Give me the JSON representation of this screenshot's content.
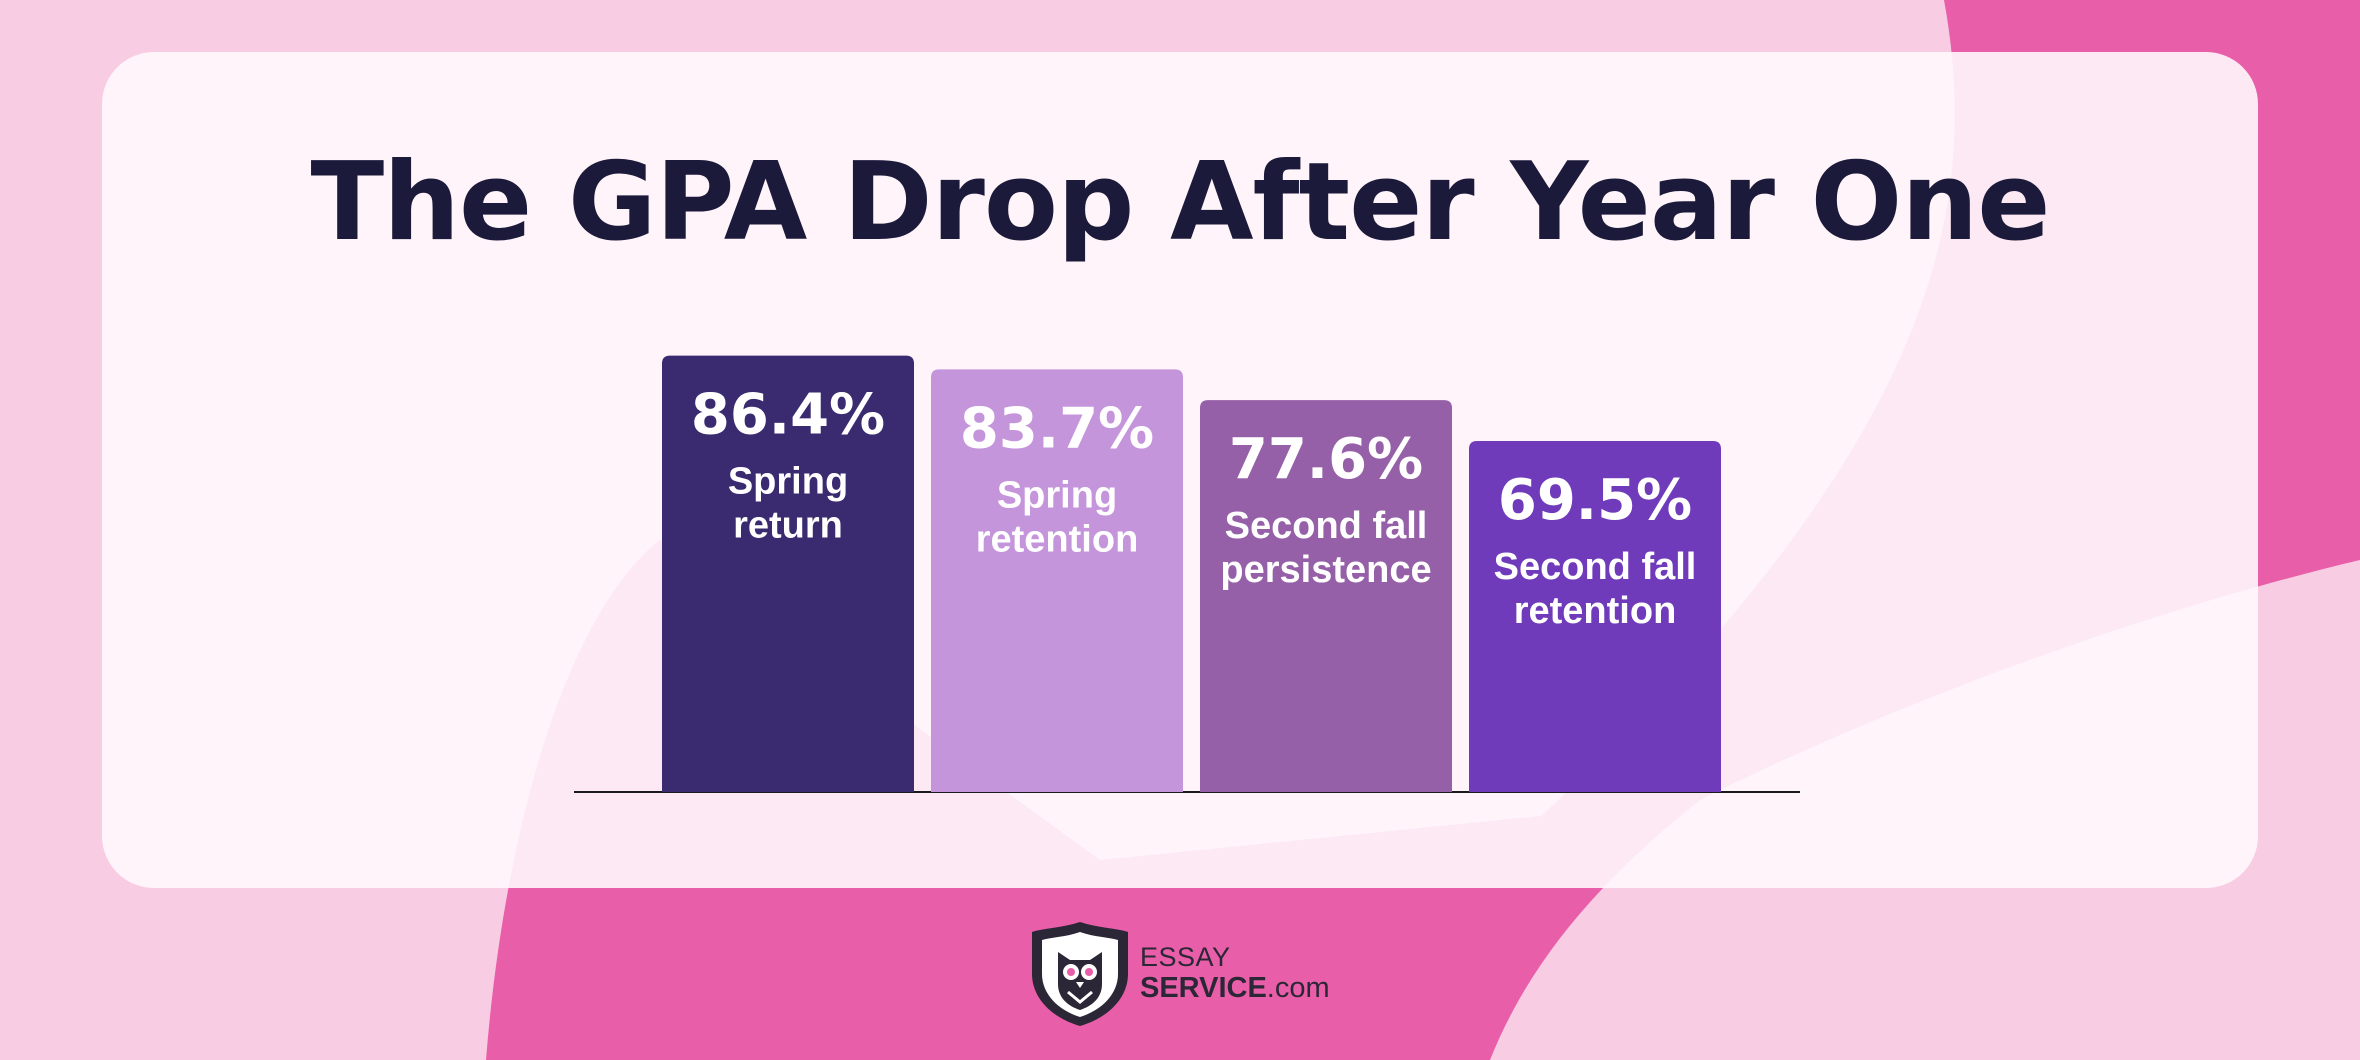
{
  "title": "The GPA Drop After Year One",
  "colors": {
    "background": "#f8cde3",
    "accent_pink": "#e95ea8",
    "card": "#fff6fa",
    "title_text": "#1c1a3a",
    "axis": "#1a1a1a"
  },
  "chart_data": {
    "type": "bar",
    "categories": [
      "Spring return",
      "Spring retention",
      "Second fall persistence",
      "Second fall retention"
    ],
    "category_lines": [
      [
        "Spring",
        "return"
      ],
      [
        "Spring",
        "retention"
      ],
      [
        "Second fall",
        "persistence"
      ],
      [
        "Second fall",
        "retention"
      ]
    ],
    "values": [
      86.4,
      83.7,
      77.6,
      69.5
    ],
    "value_labels": [
      "86.4%",
      "83.7%",
      "77.6%",
      "69.5%"
    ],
    "colors": [
      "#3a2a70",
      "#c595dc",
      "#9560a7",
      "#703bba"
    ],
    "ylim": [
      0,
      100
    ],
    "grid": false,
    "legend": "none",
    "xlabel": "",
    "ylabel": ""
  },
  "logo": {
    "icon": "owl-shield-icon",
    "line1": "ESSAY",
    "line2_bold": "SERVICE",
    "line2_suffix": ".com"
  }
}
